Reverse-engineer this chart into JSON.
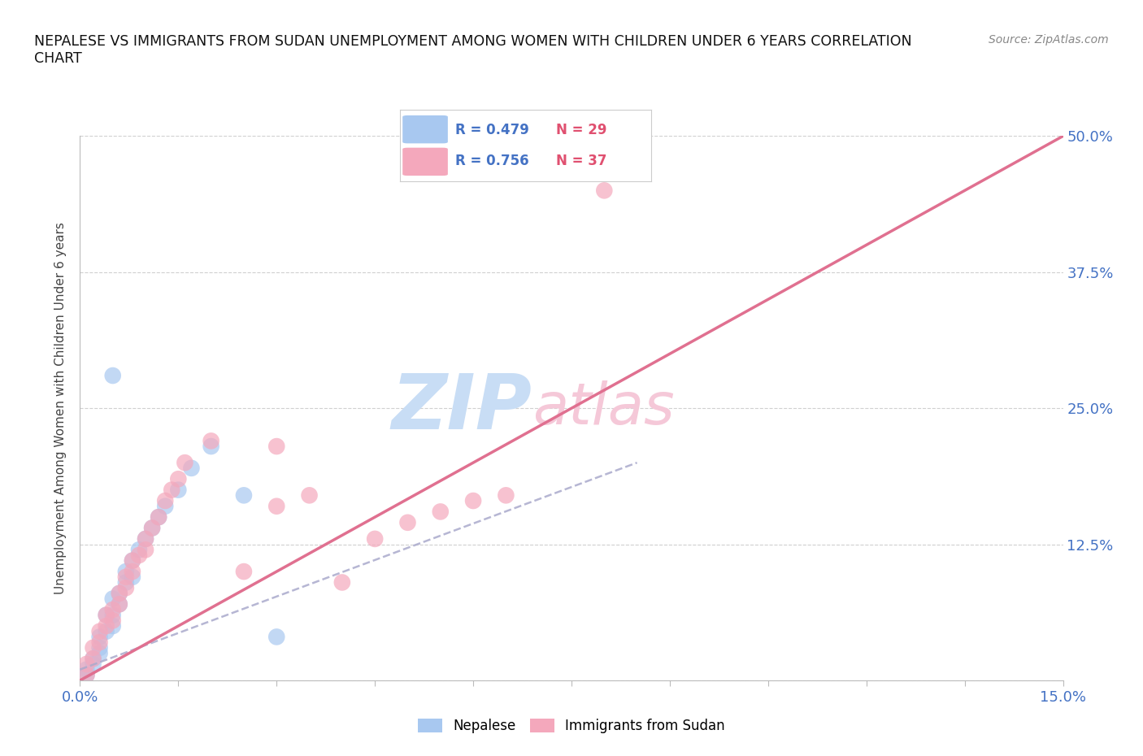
{
  "title": "NEPALESE VS IMMIGRANTS FROM SUDAN UNEMPLOYMENT AMONG WOMEN WITH CHILDREN UNDER 6 YEARS CORRELATION\nCHART",
  "source": "Source: ZipAtlas.com",
  "ylabel": "Unemployment Among Women with Children Under 6 years",
  "xlim": [
    0.0,
    0.15
  ],
  "ylim": [
    0.0,
    0.5
  ],
  "xticks": [
    0.0,
    0.015,
    0.03,
    0.045,
    0.06,
    0.075,
    0.09,
    0.105,
    0.12,
    0.135,
    0.15
  ],
  "xticklabels": [
    "0.0%",
    "",
    "",
    "",
    "",
    "",
    "",
    "",
    "",
    "",
    "15.0%"
  ],
  "yticks": [
    0.0,
    0.125,
    0.25,
    0.375,
    0.5
  ],
  "yticklabels": [
    "",
    "12.5%",
    "25.0%",
    "37.5%",
    "50.0%"
  ],
  "nepalese_R": 0.479,
  "nepalese_N": 29,
  "sudan_R": 0.756,
  "sudan_N": 37,
  "nepalese_color": "#a8c8f0",
  "sudan_color": "#f4a8bc",
  "nepalese_line_color": "#4472c4",
  "sudan_line_color": "#e07090",
  "nepalese_dash_color": "#aaaacc",
  "background_color": "#ffffff",
  "nepalese_x": [
    0.001,
    0.001,
    0.002,
    0.002,
    0.003,
    0.003,
    0.003,
    0.004,
    0.004,
    0.005,
    0.005,
    0.005,
    0.006,
    0.006,
    0.007,
    0.007,
    0.008,
    0.008,
    0.009,
    0.01,
    0.011,
    0.012,
    0.013,
    0.015,
    0.017,
    0.02,
    0.025,
    0.03,
    0.005
  ],
  "nepalese_y": [
    0.005,
    0.01,
    0.015,
    0.02,
    0.025,
    0.03,
    0.04,
    0.045,
    0.06,
    0.05,
    0.06,
    0.075,
    0.07,
    0.08,
    0.09,
    0.1,
    0.095,
    0.11,
    0.12,
    0.13,
    0.14,
    0.15,
    0.16,
    0.175,
    0.195,
    0.215,
    0.17,
    0.04,
    0.28
  ],
  "sudan_x": [
    0.001,
    0.001,
    0.002,
    0.002,
    0.003,
    0.003,
    0.004,
    0.004,
    0.005,
    0.005,
    0.006,
    0.006,
    0.007,
    0.007,
    0.008,
    0.008,
    0.009,
    0.01,
    0.01,
    0.011,
    0.012,
    0.013,
    0.014,
    0.015,
    0.016,
    0.02,
    0.025,
    0.03,
    0.035,
    0.03,
    0.04,
    0.045,
    0.05,
    0.055,
    0.06,
    0.065,
    0.08
  ],
  "sudan_y": [
    0.005,
    0.015,
    0.02,
    0.03,
    0.035,
    0.045,
    0.05,
    0.06,
    0.055,
    0.065,
    0.07,
    0.08,
    0.085,
    0.095,
    0.1,
    0.11,
    0.115,
    0.12,
    0.13,
    0.14,
    0.15,
    0.165,
    0.175,
    0.185,
    0.2,
    0.22,
    0.1,
    0.16,
    0.17,
    0.215,
    0.09,
    0.13,
    0.145,
    0.155,
    0.165,
    0.17,
    0.45
  ],
  "nepalese_line_x": [
    0.0,
    0.085
  ],
  "nepalese_line_y": [
    0.01,
    0.2
  ],
  "sudan_line_x": [
    0.0,
    0.15
  ],
  "sudan_line_y": [
    0.0,
    0.5
  ]
}
